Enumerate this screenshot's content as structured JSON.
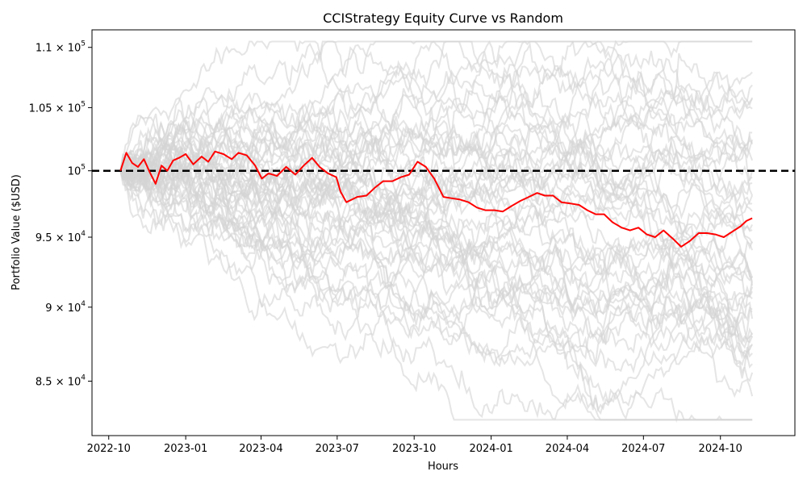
{
  "chart_data": {
    "type": "line",
    "title": "CCIStrategy Equity Curve vs Random",
    "xlabel": "Hours",
    "ylabel": "Portfolio Value ($USD)",
    "y_scale": "log",
    "xlim": [
      "2022-09-11",
      "2024-12-29"
    ],
    "ylim": [
      81500,
      111500
    ],
    "x_ticks": [
      {
        "date": "2022-10-01",
        "label": "2022-10"
      },
      {
        "date": "2023-01-01",
        "label": "2023-01"
      },
      {
        "date": "2023-04-01",
        "label": "2023-04"
      },
      {
        "date": "2023-07-01",
        "label": "2023-07"
      },
      {
        "date": "2023-10-01",
        "label": "2023-10"
      },
      {
        "date": "2024-01-01",
        "label": "2024-01"
      },
      {
        "date": "2024-04-01",
        "label": "2024-04"
      },
      {
        "date": "2024-07-01",
        "label": "2024-07"
      },
      {
        "date": "2024-10-01",
        "label": "2024-10"
      }
    ],
    "y_ticks": [
      {
        "value": 85000,
        "mantissa": "8.5",
        "exponent": "4"
      },
      {
        "value": 90000,
        "mantissa": "9",
        "exponent": "4"
      },
      {
        "value": 95000,
        "mantissa": "9.5",
        "exponent": "4"
      },
      {
        "value": 100000,
        "mantissa": "",
        "exponent": "5"
      },
      {
        "value": 105000,
        "mantissa": "1.05",
        "exponent": "5"
      },
      {
        "value": 110000,
        "mantissa": "1.1",
        "exponent": "5"
      }
    ],
    "reference_line": {
      "value": 100000,
      "style": "dashed",
      "color": "#000000"
    },
    "colors": {
      "strategy": "#ff0000",
      "random": "#d3d3d3",
      "reference": "#000000"
    },
    "legend": "none",
    "grid": false,
    "series": [
      {
        "role": "strategy",
        "x": [
          "2022-10-15",
          "2022-10-22",
          "2022-10-29",
          "2022-11-05",
          "2022-11-12",
          "2022-11-19",
          "2022-11-26",
          "2022-12-03",
          "2022-12-10",
          "2022-12-17",
          "2022-12-24",
          "2023-01-01",
          "2023-01-10",
          "2023-01-20",
          "2023-01-28",
          "2023-02-05",
          "2023-02-15",
          "2023-02-25",
          "2023-03-05",
          "2023-03-15",
          "2023-03-25",
          "2023-04-02",
          "2023-04-10",
          "2023-04-20",
          "2023-05-01",
          "2023-05-12",
          "2023-05-22",
          "2023-06-01",
          "2023-06-10",
          "2023-06-20",
          "2023-06-30",
          "2023-07-05",
          "2023-07-12",
          "2023-07-25",
          "2023-08-05",
          "2023-08-15",
          "2023-08-25",
          "2023-09-05",
          "2023-09-15",
          "2023-09-25",
          "2023-10-05",
          "2023-10-15",
          "2023-10-25",
          "2023-11-05",
          "2023-11-15",
          "2023-11-25",
          "2023-12-05",
          "2023-12-15",
          "2023-12-25",
          "2024-01-05",
          "2024-01-15",
          "2024-01-25",
          "2024-02-05",
          "2024-02-15",
          "2024-02-25",
          "2024-03-05",
          "2024-03-15",
          "2024-03-25",
          "2024-04-05",
          "2024-04-15",
          "2024-04-25",
          "2024-05-05",
          "2024-05-15",
          "2024-05-25",
          "2024-06-05",
          "2024-06-15",
          "2024-06-25",
          "2024-07-05",
          "2024-07-15",
          "2024-07-25",
          "2024-08-05",
          "2024-08-15",
          "2024-08-25",
          "2024-09-05",
          "2024-09-15",
          "2024-09-25",
          "2024-10-05",
          "2024-10-15",
          "2024-10-25",
          "2024-11-01",
          "2024-11-08"
        ],
        "y": [
          100000,
          101400,
          100600,
          100300,
          100900,
          99900,
          99000,
          100400,
          100000,
          100800,
          101000,
          101300,
          100500,
          101100,
          100700,
          101500,
          101300,
          100900,
          101400,
          101200,
          100400,
          99400,
          99800,
          99600,
          100300,
          99700,
          100400,
          101000,
          100300,
          99800,
          99500,
          98400,
          97600,
          98000,
          98100,
          98700,
          99200,
          99200,
          99500,
          99700,
          100700,
          100300,
          99400,
          98000,
          97900,
          97800,
          97600,
          97200,
          97000,
          97000,
          96900,
          97300,
          97700,
          98000,
          98300,
          98100,
          98100,
          97600,
          97500,
          97400,
          97000,
          96700,
          96700,
          96100,
          95700,
          95500,
          95700,
          95200,
          95000,
          95500,
          94900,
          94300,
          94700,
          95300,
          95300,
          95200,
          95000,
          95400,
          95800,
          96200,
          96400
        ]
      }
    ]
  }
}
